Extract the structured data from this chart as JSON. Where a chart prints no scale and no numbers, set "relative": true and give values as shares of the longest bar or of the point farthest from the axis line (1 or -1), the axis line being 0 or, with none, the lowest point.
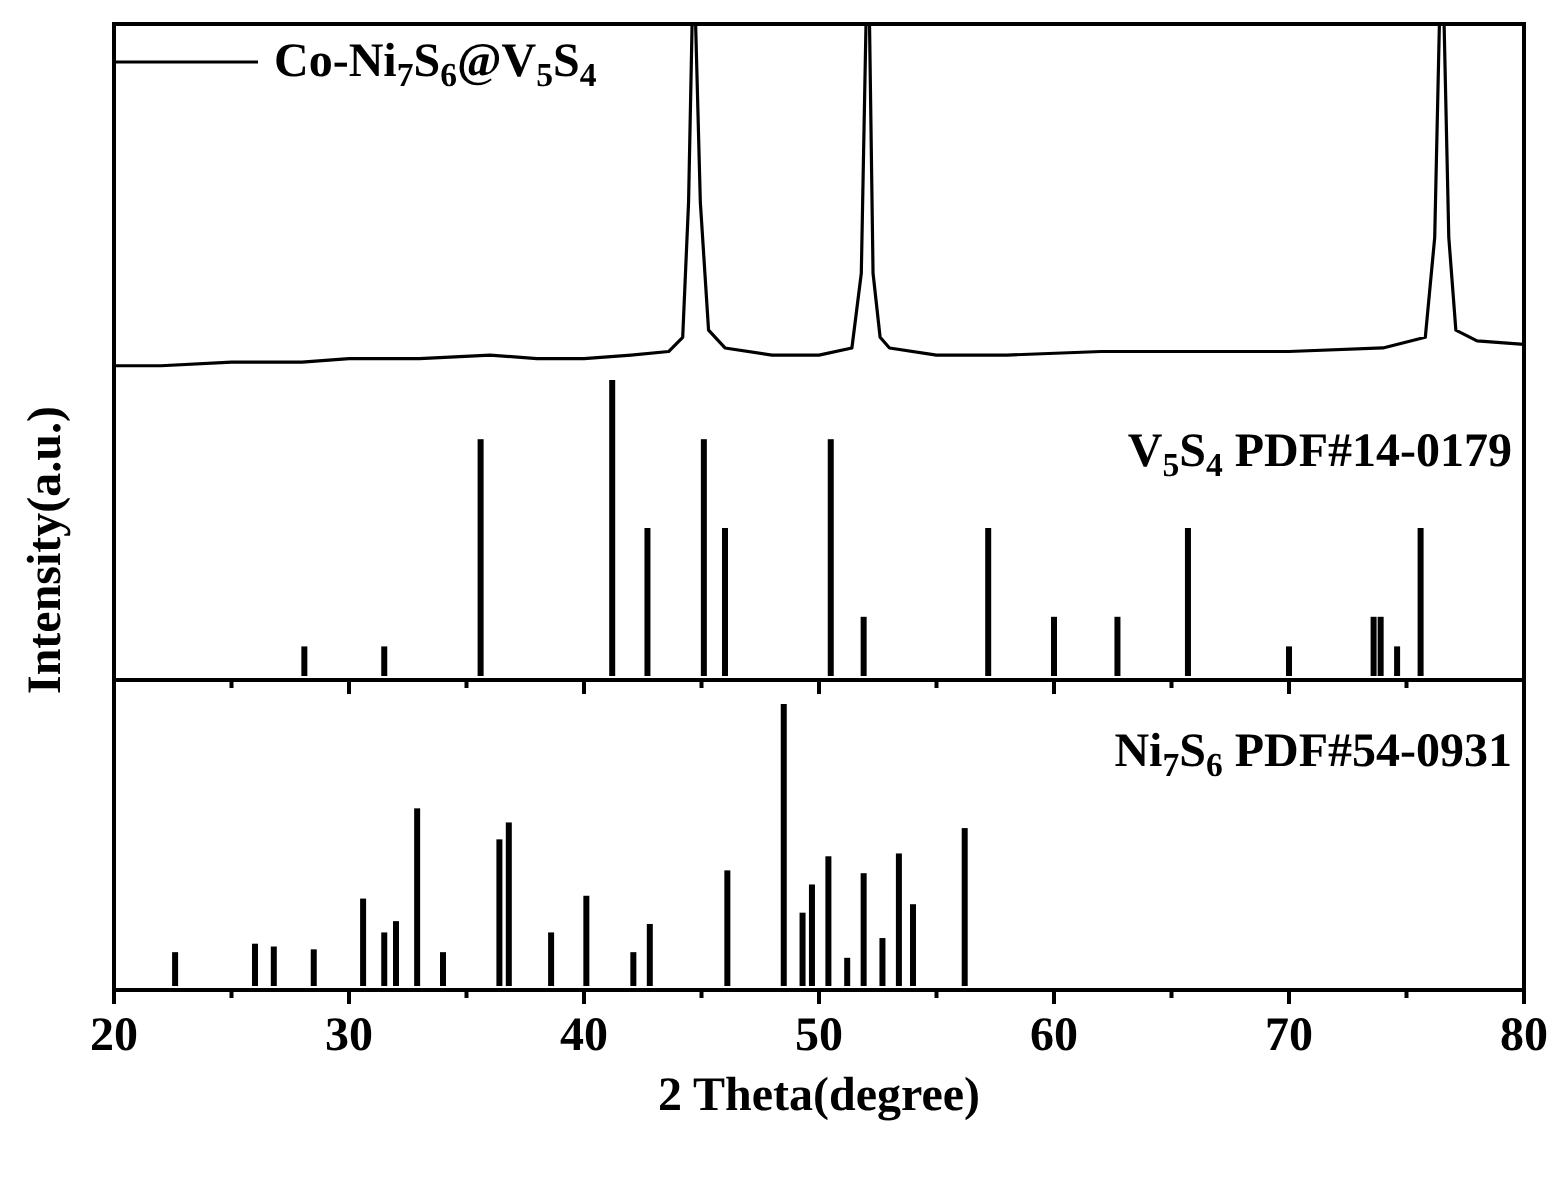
{
  "chart_data": [
    {
      "type": "line",
      "relative": true,
      "xlim": [
        20,
        80
      ],
      "tick_labels": false,
      "legend": "top left",
      "line_style": "solid",
      "series": [
        {
          "name": "Co-Ni$_{7}$S$_{6}$@V$_{5}$S$_{4}$",
          "color": "#000000",
          "x": [
            20,
            22,
            25,
            28,
            30,
            33,
            36,
            38,
            40,
            42,
            43.6,
            44.2,
            44.45,
            44.6,
            44.75,
            44.95,
            45.3,
            46,
            48,
            50,
            51.4,
            51.8,
            52.0,
            52.15,
            52.3,
            52.6,
            53,
            55,
            58,
            62,
            66,
            70,
            74,
            75.8,
            76.2,
            76.4,
            76.6,
            76.8,
            77.1,
            78,
            80
          ],
          "values": [
            0.04,
            0.04,
            0.05,
            0.05,
            0.06,
            0.06,
            0.07,
            0.06,
            0.06,
            0.07,
            0.08,
            0.12,
            0.5,
            1,
            1,
            0.5,
            0.14,
            0.09,
            0.07,
            0.07,
            0.09,
            0.3,
            1,
            1,
            0.3,
            0.12,
            0.09,
            0.07,
            0.07,
            0.08,
            0.08,
            0.08,
            0.09,
            0.12,
            0.4,
            1,
            1,
            0.4,
            0.14,
            0.11,
            0.1
          ]
        }
      ]
    },
    {
      "type": "bar",
      "relative": true,
      "xlim": [
        20,
        80
      ],
      "xticks": [
        20,
        {
          "value": 25,
          "label": null
        },
        30,
        {
          "value": 35,
          "label": null
        },
        40,
        {
          "value": 45,
          "label": null
        },
        50,
        {
          "value": 55,
          "label": null
        },
        60,
        {
          "value": 65,
          "label": null
        },
        70,
        {
          "value": 75,
          "label": null
        },
        80
      ],
      "tick_labels": false,
      "ylabel": "Intensity(a.u.)",
      "annotations": [
        "V$_{5}$S$_{4}$ PDF#14-0179"
      ],
      "series": [
        {
          "color": "#000000",
          "x": [
            28.1,
            31.5,
            35.6,
            41.2,
            42.7,
            45.1,
            46.0,
            50.5,
            51.9,
            57.2,
            60.0,
            62.7,
            65.7,
            70.0,
            73.6,
            73.9,
            74.6,
            75.6
          ],
          "values": [
            0.1,
            0.1,
            0.8,
            1,
            0.5,
            0.8,
            0.5,
            0.8,
            0.2,
            0.5,
            0.2,
            0.2,
            0.5,
            0.1,
            0.2,
            0.2,
            0.1,
            0.5
          ]
        }
      ]
    },
    {
      "type": "bar",
      "relative": true,
      "xlim": [
        20,
        80
      ],
      "xticks": [
        20,
        {
          "value": 25,
          "label": null
        },
        30,
        {
          "value": 35,
          "label": null
        },
        40,
        {
          "value": 45,
          "label": null
        },
        50,
        {
          "value": 55,
          "label": null
        },
        60,
        {
          "value": 65,
          "label": null
        },
        70,
        {
          "value": 75,
          "label": null
        },
        80
      ],
      "tick_labels": "x",
      "xlabel": "2 Theta(degree)",
      "annotations": [
        "Ni$_{7}$S$_{6}$ PDF#54-0931"
      ],
      "series": [
        {
          "color": "#000000",
          "x": [
            22.6,
            26.0,
            26.8,
            28.5,
            30.6,
            31.5,
            32.0,
            32.9,
            34.0,
            36.4,
            36.8,
            38.6,
            40.1,
            42.1,
            42.8,
            46.1,
            48.5,
            49.3,
            49.7,
            50.4,
            51.2,
            51.9,
            52.7,
            53.4,
            54.0,
            56.2
          ],
          "values": [
            0.12,
            0.15,
            0.14,
            0.13,
            0.31,
            0.19,
            0.23,
            0.63,
            0.12,
            0.52,
            0.58,
            0.19,
            0.32,
            0.12,
            0.22,
            0.41,
            1,
            0.26,
            0.36,
            0.46,
            0.1,
            0.4,
            0.17,
            0.47,
            0.29,
            0.56
          ]
        }
      ]
    }
  ]
}
